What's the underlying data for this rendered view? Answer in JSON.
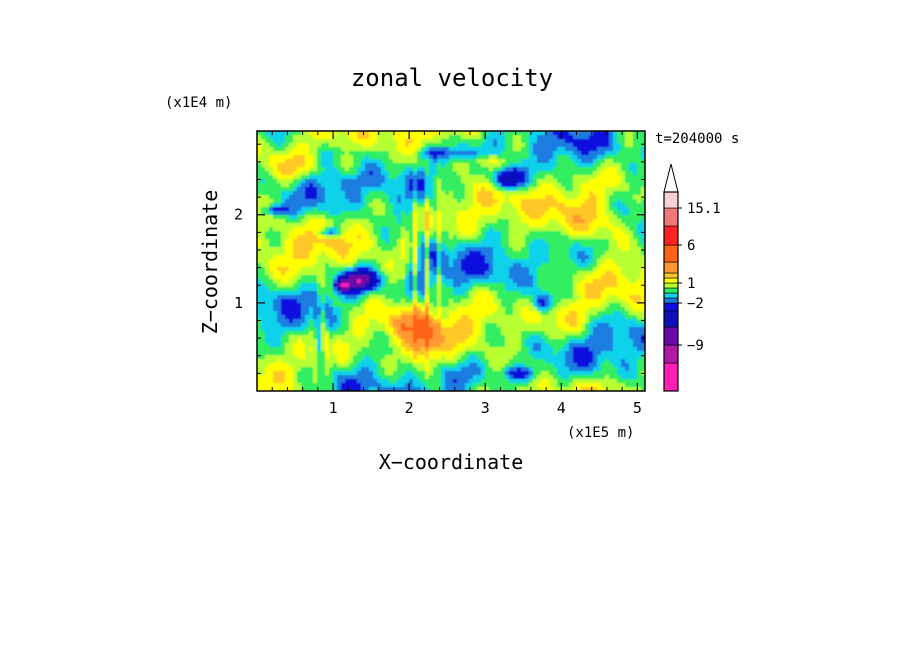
{
  "chart_data": {
    "type": "heatmap",
    "title": "zonal velocity",
    "xlabel": "X−coordinate",
    "ylabel": "Z−coordinate",
    "x_scale_label": "(x1E5 m)",
    "y_scale_label": "(x1E4 m)",
    "time_label": "t=204000 s",
    "xlim": [
      0,
      5.1
    ],
    "ylim": [
      0,
      2.95
    ],
    "x_ticks": [
      "1",
      "2",
      "3",
      "4",
      "5"
    ],
    "y_ticks": [
      "1",
      "2"
    ],
    "colorbar": {
      "labels": [
        {
          "text": "15.1",
          "value": 15.1
        },
        {
          "text": "6",
          "value": 6
        },
        {
          "text": "1",
          "value": 1
        },
        {
          "text": "−2",
          "value": -2
        },
        {
          "text": "−9",
          "value": -9
        }
      ],
      "colors": [
        "#ff1fb4",
        "#b01aa8",
        "#6a0aa8",
        "#1010b8",
        "#0d0dde",
        "#1a7be0",
        "#10d2ea",
        "#30ee60",
        "#b8ff30",
        "#ffff00",
        "#ffc828",
        "#ff9830",
        "#ff6414",
        "#ff2222",
        "#f07878",
        "#fbd0d0",
        "#ffffff"
      ],
      "extend": "max"
    }
  }
}
